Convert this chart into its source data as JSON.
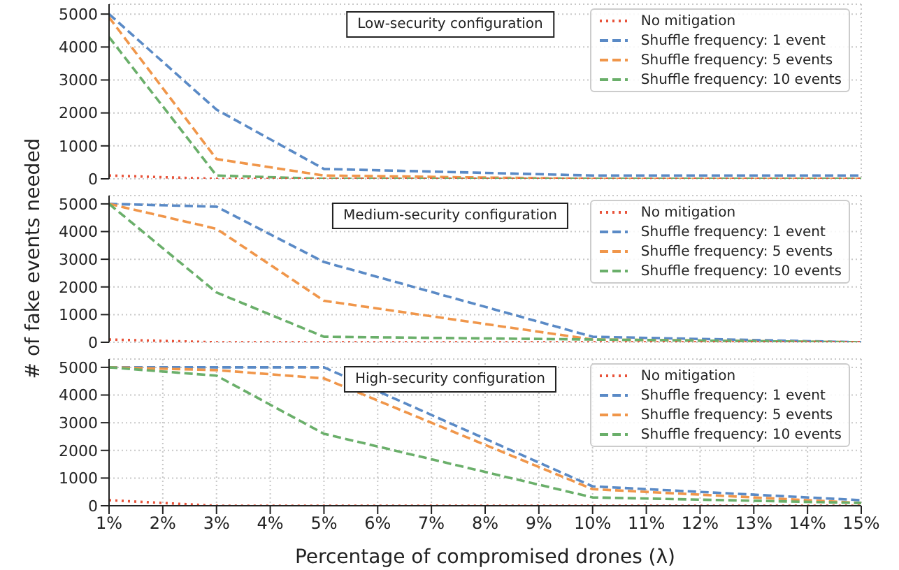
{
  "chart_data": [
    {
      "type": "line",
      "title": "Low-security configuration",
      "x": [
        1,
        3,
        5,
        10,
        15
      ],
      "xlim": [
        1,
        15
      ],
      "xticks": [
        {
          "value": 1,
          "label": null
        },
        {
          "value": 2,
          "label": null
        },
        {
          "value": 3,
          "label": null
        },
        {
          "value": 4,
          "label": null
        },
        {
          "value": 5,
          "label": null
        },
        {
          "value": 6,
          "label": null
        },
        {
          "value": 7,
          "label": null
        },
        {
          "value": 8,
          "label": null
        },
        {
          "value": 9,
          "label": null
        },
        {
          "value": 10,
          "label": null
        },
        {
          "value": 11,
          "label": null
        },
        {
          "value": 12,
          "label": null
        },
        {
          "value": 13,
          "label": null
        },
        {
          "value": 14,
          "label": null
        },
        {
          "value": 15,
          "label": null
        }
      ],
      "ylim": [
        0,
        5300
      ],
      "yticks": [
        0,
        1000,
        2000,
        3000,
        4000,
        5000
      ],
      "tick_labels": "y",
      "grid": true,
      "legend": "top right",
      "marker": "none",
      "series": [
        {
          "name": "No mitigation",
          "color": "#e8533a",
          "line_style": "dotted",
          "values": [
            100,
            0,
            0,
            0,
            0
          ]
        },
        {
          "name": "Shuffle frequency: 1 event",
          "color": "#5a8ac6",
          "line_style": "dashed",
          "values": [
            5000,
            2100,
            300,
            100,
            100
          ]
        },
        {
          "name": "Shuffle frequency: 5 events",
          "color": "#f0964a",
          "line_style": "dashed",
          "values": [
            4900,
            600,
            100,
            0,
            0
          ]
        },
        {
          "name": "Shuffle frequency: 10 events",
          "color": "#6aaf6a",
          "line_style": "dashed",
          "values": [
            4300,
            100,
            0,
            0,
            0
          ]
        }
      ]
    },
    {
      "type": "line",
      "title": "Medium-security configuration",
      "ylabel": "# of fake events needed",
      "x": [
        1,
        3,
        5,
        10,
        15
      ],
      "xlim": [
        1,
        15
      ],
      "xticks": [
        {
          "value": 1,
          "label": null
        },
        {
          "value": 2,
          "label": null
        },
        {
          "value": 3,
          "label": null
        },
        {
          "value": 4,
          "label": null
        },
        {
          "value": 5,
          "label": null
        },
        {
          "value": 6,
          "label": null
        },
        {
          "value": 7,
          "label": null
        },
        {
          "value": 8,
          "label": null
        },
        {
          "value": 9,
          "label": null
        },
        {
          "value": 10,
          "label": null
        },
        {
          "value": 11,
          "label": null
        },
        {
          "value": 12,
          "label": null
        },
        {
          "value": 13,
          "label": null
        },
        {
          "value": 14,
          "label": null
        },
        {
          "value": 15,
          "label": null
        }
      ],
      "ylim": [
        0,
        5300
      ],
      "yticks": [
        0,
        1000,
        2000,
        3000,
        4000,
        5000
      ],
      "tick_labels": "y",
      "grid": true,
      "legend": "top right",
      "marker": "none",
      "series": [
        {
          "name": "No mitigation",
          "color": "#e8533a",
          "line_style": "dotted",
          "values": [
            100,
            0,
            0,
            0,
            0
          ]
        },
        {
          "name": "Shuffle frequency: 1 event",
          "color": "#5a8ac6",
          "line_style": "dashed",
          "values": [
            5000,
            4900,
            2900,
            200,
            0
          ]
        },
        {
          "name": "Shuffle frequency: 5 events",
          "color": "#f0964a",
          "line_style": "dashed",
          "values": [
            5000,
            4100,
            1500,
            100,
            0
          ]
        },
        {
          "name": "Shuffle frequency: 10 events",
          "color": "#6aaf6a",
          "line_style": "dashed",
          "values": [
            5000,
            1800,
            200,
            100,
            0
          ]
        }
      ]
    },
    {
      "type": "line",
      "title": "High-security configuration",
      "xlabel": "Percentage of compromised drones (λ)",
      "x": [
        1,
        3,
        5,
        10,
        15
      ],
      "xlim": [
        1,
        15
      ],
      "xticks": [
        {
          "value": 1,
          "label": "1%"
        },
        {
          "value": 2,
          "label": "2%"
        },
        {
          "value": 3,
          "label": "3%"
        },
        {
          "value": 4,
          "label": "4%"
        },
        {
          "value": 5,
          "label": "5%"
        },
        {
          "value": 6,
          "label": "6%"
        },
        {
          "value": 7,
          "label": "7%"
        },
        {
          "value": 8,
          "label": "8%"
        },
        {
          "value": 9,
          "label": "9%"
        },
        {
          "value": 10,
          "label": "10%"
        },
        {
          "value": 11,
          "label": "11%"
        },
        {
          "value": 12,
          "label": "12%"
        },
        {
          "value": 13,
          "label": "13%"
        },
        {
          "value": 14,
          "label": "14%"
        },
        {
          "value": 15,
          "label": "15%"
        }
      ],
      "ylim": [
        0,
        5300
      ],
      "yticks": [
        0,
        1000,
        2000,
        3000,
        4000,
        5000
      ],
      "grid": true,
      "legend": "top right",
      "marker": "none",
      "series": [
        {
          "name": "No mitigation",
          "color": "#e8533a",
          "line_style": "dotted",
          "values": [
            200,
            0,
            0,
            0,
            0
          ]
        },
        {
          "name": "Shuffle frequency: 1 event",
          "color": "#5a8ac6",
          "line_style": "dashed",
          "values": [
            5000,
            5000,
            5000,
            700,
            200
          ]
        },
        {
          "name": "Shuffle frequency: 5 events",
          "color": "#f0964a",
          "line_style": "dashed",
          "values": [
            5000,
            4900,
            4600,
            600,
            100
          ]
        },
        {
          "name": "Shuffle frequency: 10 events",
          "color": "#6aaf6a",
          "line_style": "dashed",
          "values": [
            5000,
            4700,
            2600,
            300,
            100
          ]
        }
      ]
    }
  ]
}
